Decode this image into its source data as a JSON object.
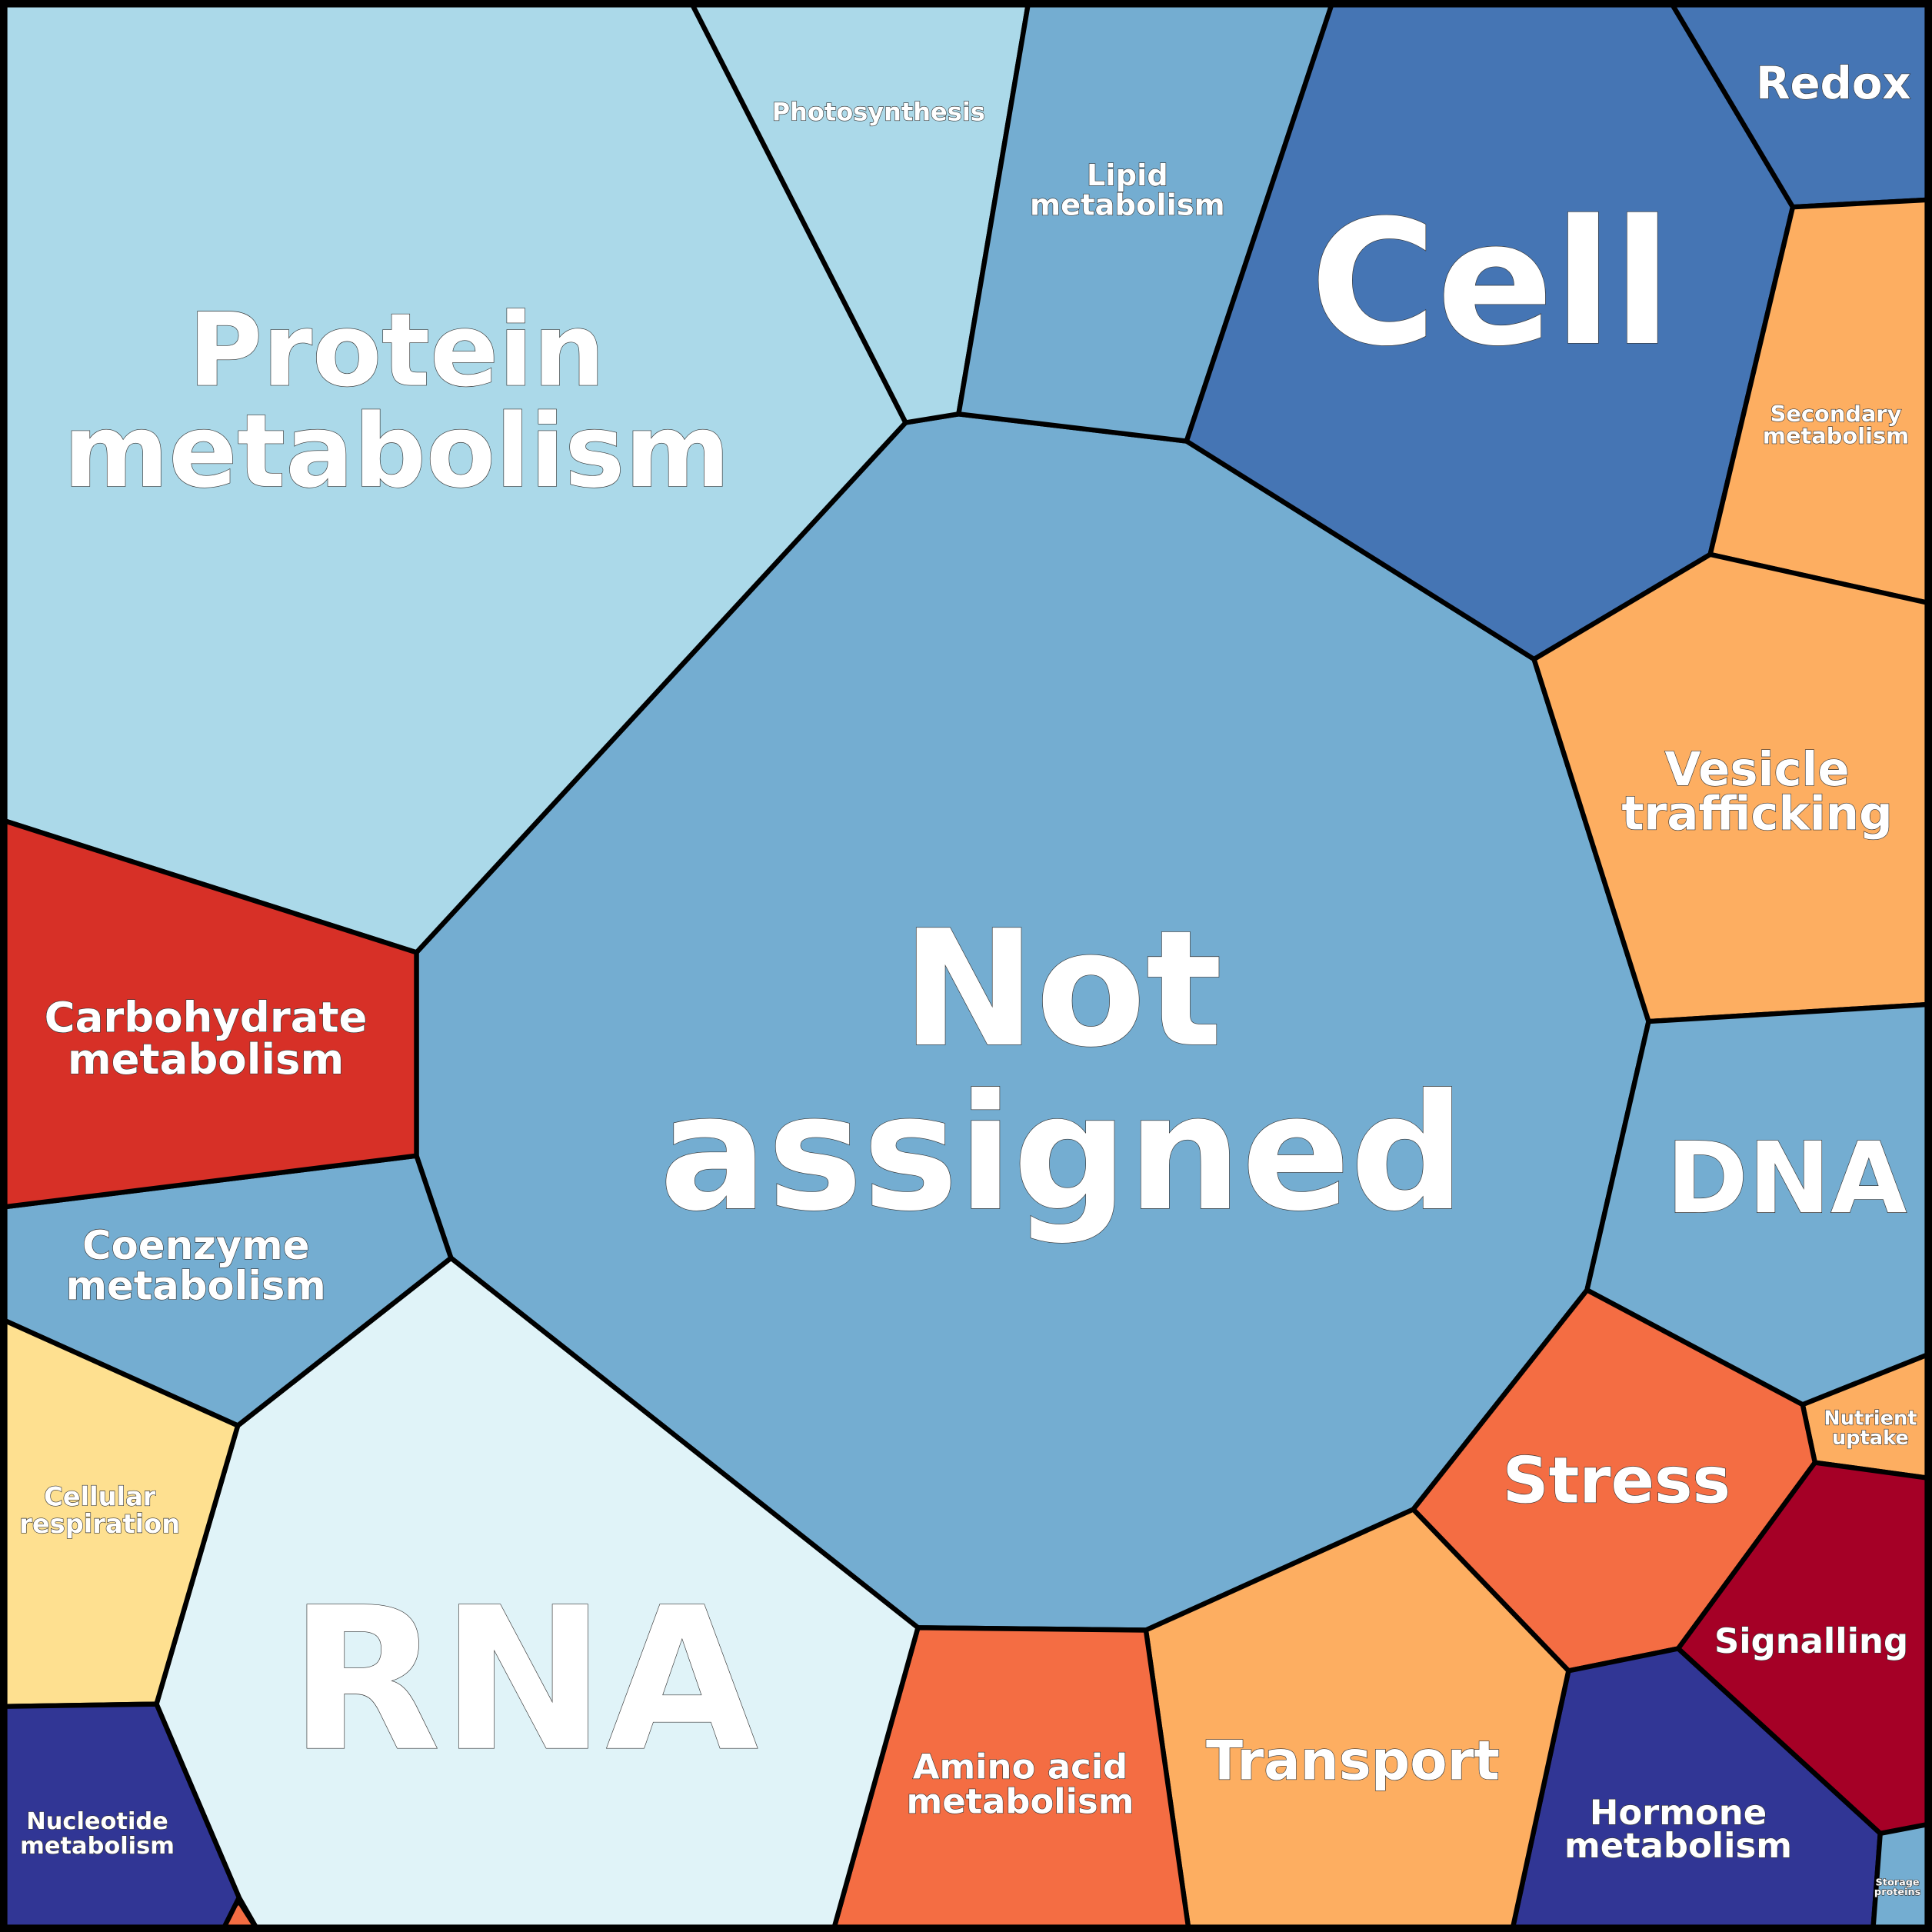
{
  "chart_data": {
    "type": "voronoi",
    "categories": [
      [
        "Not",
        "assigned"
      ],
      [
        "Protein",
        "metabolism"
      ],
      [
        "Photosynthesis"
      ],
      [
        "Lipid",
        "metabolism"
      ],
      [
        "Cell"
      ],
      [
        "Redox"
      ],
      [
        "Secondary",
        "metabolism"
      ],
      [
        "Vesicle",
        "trafficking"
      ],
      [
        "DNA"
      ],
      [
        "Nutrient",
        "uptake"
      ],
      [
        "Stress"
      ],
      [
        "Signalling"
      ],
      [
        "Hormone",
        "metabolism"
      ],
      [
        "Storage",
        "proteins"
      ],
      [
        "Transport"
      ],
      [
        "Amino acid",
        "metabolism"
      ],
      [
        "RNA"
      ],
      [
        "Coenzyme",
        "metabolism"
      ],
      [
        "Carbohydrate",
        "metabolism"
      ],
      [
        "Cellular",
        "respiration"
      ],
      [
        "Nucleotide",
        "metabolism"
      ]
    ],
    "colors": [
      "#74add1",
      "#abd9e9",
      "#abd9e9",
      "#74add1",
      "#4575b4",
      "#4575b4",
      "#fdae61",
      "#fdae61",
      "#74add1",
      "#fdae61",
      "#f46d43",
      "#a50026",
      "#313695",
      "#74add1",
      "#fdae61",
      "#f46d43",
      "#e0f3f8",
      "#74add1",
      "#d73027",
      "#fee090",
      "#313695"
    ]
  }
}
